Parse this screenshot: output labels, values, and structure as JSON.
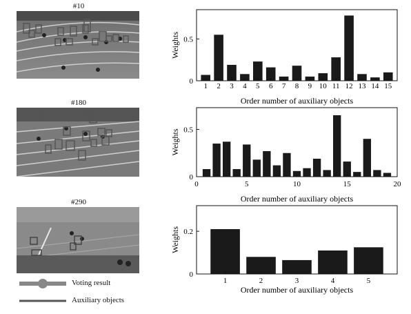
{
  "frames": [
    {
      "label": "#10"
    },
    {
      "label": "#180"
    },
    {
      "label": "#290"
    }
  ],
  "legend": {
    "voting_label": "Voting result",
    "aux_label": "Auxiliary objects"
  },
  "chart_data": [
    {
      "type": "bar",
      "ylabel": "Weights",
      "xlabel": "Order number of auxiliary objects",
      "categories": [
        "1",
        "2",
        "3",
        "4",
        "5",
        "6",
        "7",
        "8",
        "9",
        "10",
        "11",
        "12",
        "13",
        "14",
        "15"
      ],
      "values": [
        0.07,
        0.55,
        0.19,
        0.08,
        0.23,
        0.16,
        0.05,
        0.18,
        0.05,
        0.09,
        0.28,
        0.78,
        0.08,
        0.04,
        0.1
      ],
      "ylim": [
        0,
        0.85
      ],
      "yticks": [
        0,
        0.5
      ],
      "xticks": [
        1,
        2,
        3,
        4,
        5,
        6,
        7,
        8,
        9,
        10,
        11,
        12,
        13,
        14,
        15
      ],
      "xlim": [
        0.3,
        15.7
      ],
      "bar_color": "#1a1a1a"
    },
    {
      "type": "bar",
      "ylabel": "Weights",
      "xlabel": "Order number of auxiliary objects",
      "categories": [
        "1",
        "2",
        "3",
        "4",
        "5",
        "6",
        "7",
        "8",
        "9",
        "10",
        "11",
        "12",
        "13",
        "14",
        "15",
        "16",
        "17",
        "18",
        "19"
      ],
      "values": [
        0.08,
        0.35,
        0.37,
        0.08,
        0.34,
        0.18,
        0.27,
        0.12,
        0.25,
        0.06,
        0.09,
        0.19,
        0.07,
        0.65,
        0.16,
        0.05,
        0.4,
        0.07,
        0.04
      ],
      "ylim": [
        0,
        0.73
      ],
      "yticks": [
        0,
        0.5
      ],
      "xticks": [
        0,
        5,
        10,
        15,
        20
      ],
      "xlim": [
        0,
        20
      ],
      "bar_color": "#1a1a1a"
    },
    {
      "type": "bar",
      "ylabel": "Weights",
      "xlabel": "Order number of auxiliary objects",
      "categories": [
        "1",
        "2",
        "3",
        "4",
        "5"
      ],
      "values": [
        0.21,
        0.08,
        0.065,
        0.11,
        0.125
      ],
      "ylim": [
        0,
        0.32
      ],
      "yticks": [
        0,
        0.2
      ],
      "xticks": [
        1,
        2,
        3,
        4,
        5
      ],
      "xlim": [
        0.2,
        5.8
      ],
      "bar_color": "#1a1a1a"
    }
  ]
}
